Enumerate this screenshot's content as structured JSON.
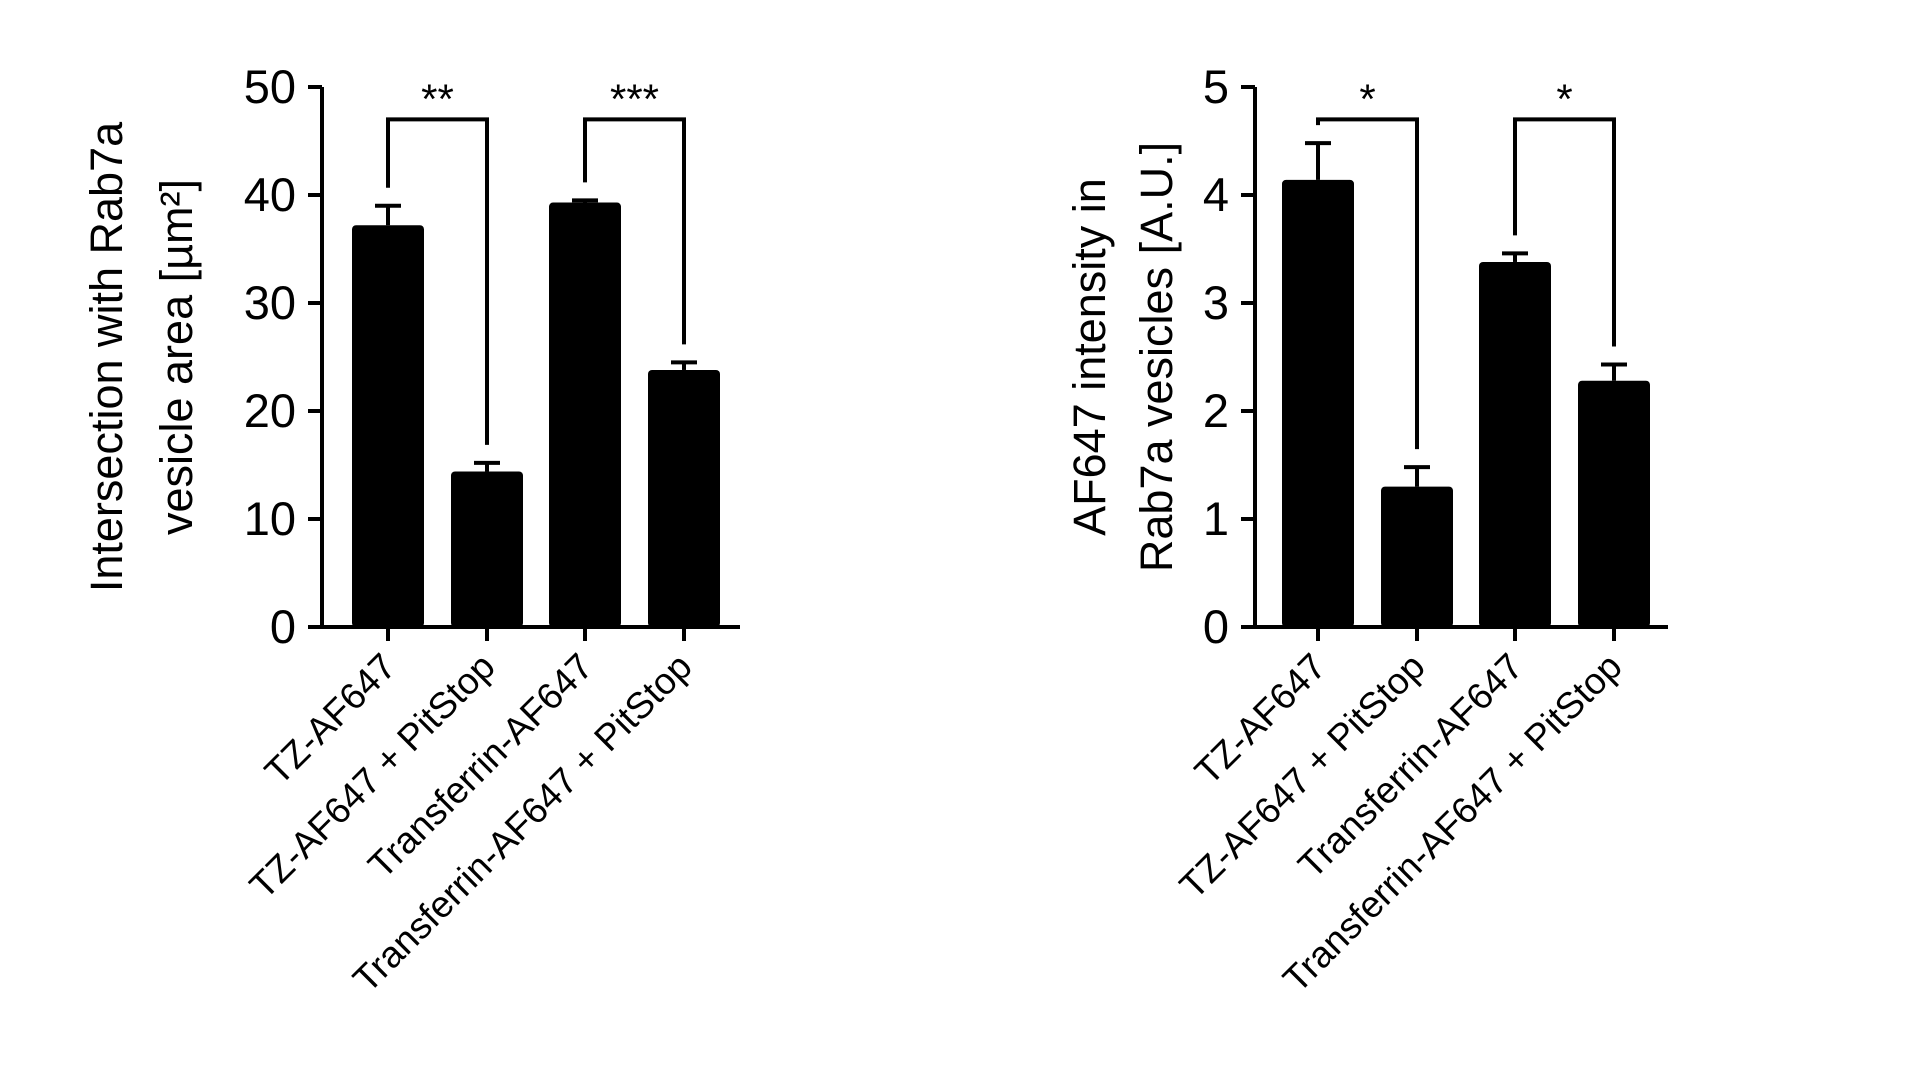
{
  "chart_data": [
    {
      "type": "bar",
      "title": "",
      "ylabel_lines": [
        "Intersection with Rab7a",
        "vesicle area [µm²]"
      ],
      "ylim": [
        0,
        50
      ],
      "yticks": [
        0,
        10,
        20,
        30,
        40,
        50
      ],
      "categories": [
        "TZ-AF647",
        "TZ-AF647 + PitStop",
        "Transferrin-AF647",
        "Transferrin-AF647 + PitStop"
      ],
      "values": [
        37.2,
        14.4,
        39.3,
        23.8
      ],
      "errors": [
        1.8,
        0.8,
        0.2,
        0.7
      ],
      "significance": [
        {
          "from": 0,
          "to": 1,
          "label": "**",
          "y": 47
        },
        {
          "from": 2,
          "to": 3,
          "label": "***",
          "y": 47
        }
      ],
      "bar_color": "#000000"
    },
    {
      "type": "bar",
      "title": "",
      "ylabel_lines": [
        "AF647 intensity in",
        "Rab7a vesicles [A.U.]"
      ],
      "ylim": [
        0,
        5
      ],
      "yticks": [
        0,
        1,
        2,
        3,
        4,
        5
      ],
      "categories": [
        "TZ-AF647",
        "TZ-AF647 + PitStop",
        "Transferrin-AF647",
        "Transferrin-AF647 + PitStop"
      ],
      "values": [
        4.14,
        1.3,
        3.38,
        2.28
      ],
      "errors": [
        0.34,
        0.18,
        0.08,
        0.15
      ],
      "significance": [
        {
          "from": 0,
          "to": 1,
          "label": "*",
          "y": 4.7
        },
        {
          "from": 2,
          "to": 3,
          "label": "*",
          "y": 4.7
        }
      ],
      "bar_color": "#000000"
    }
  ]
}
